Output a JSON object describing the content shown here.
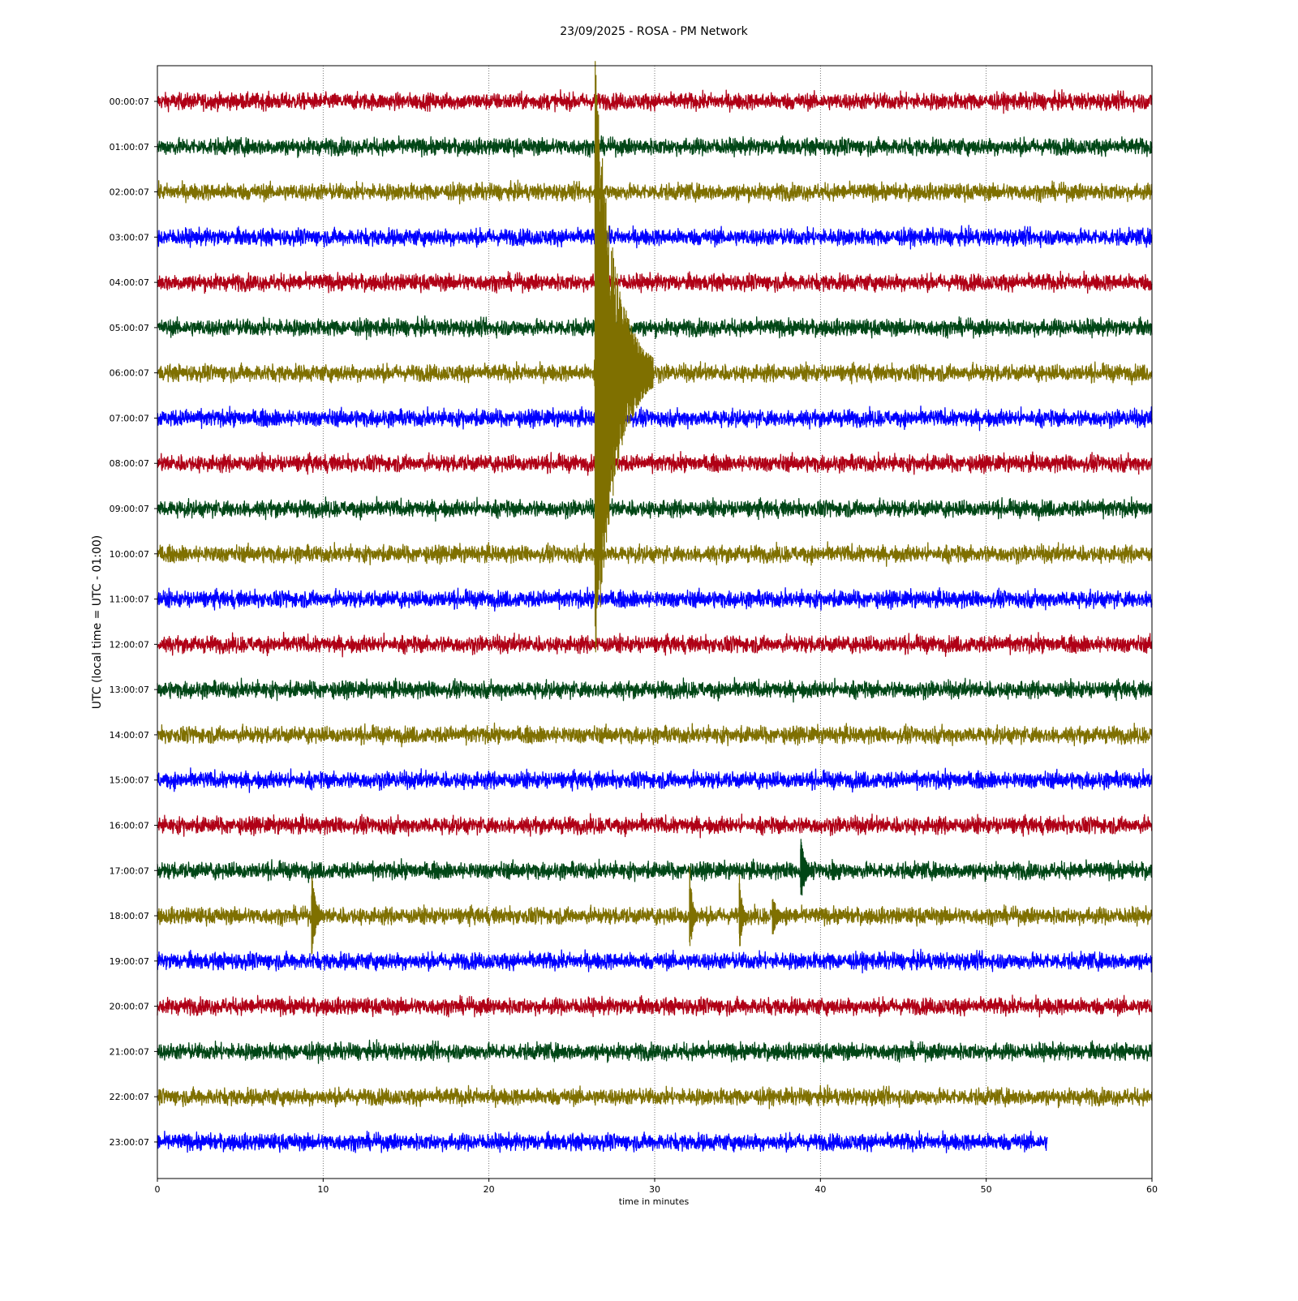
{
  "chart_data": {
    "type": "line",
    "title": "23/09/2025 - ROSA - PM Network",
    "xlabel": "time in minutes",
    "ylabel": "UTC (local time = UTC - 01:00)",
    "xlim": [
      0,
      60
    ],
    "x_ticks": [
      0,
      10,
      20,
      30,
      40,
      50,
      60
    ],
    "grid": "vertical dotted gridlines at x ticks",
    "legend": "none",
    "trace_colors": [
      "#b00016",
      "#004616",
      "#7f7000",
      "#0000ff"
    ],
    "series": [
      {
        "hour_label": "00:00:07",
        "color": "#b00016",
        "end_minute": 60
      },
      {
        "hour_label": "01:00:07",
        "color": "#004616",
        "end_minute": 60
      },
      {
        "hour_label": "02:00:07",
        "color": "#7f7000",
        "end_minute": 60
      },
      {
        "hour_label": "03:00:07",
        "color": "#0000ff",
        "end_minute": 60
      },
      {
        "hour_label": "04:00:07",
        "color": "#b00016",
        "end_minute": 60
      },
      {
        "hour_label": "05:00:07",
        "color": "#004616",
        "end_minute": 60
      },
      {
        "hour_label": "06:00:07",
        "color": "#7f7000",
        "end_minute": 60,
        "events": [
          {
            "minute": 26.4,
            "amplitude": 7.0,
            "duration": 3.5
          }
        ]
      },
      {
        "hour_label": "07:00:07",
        "color": "#0000ff",
        "end_minute": 60
      },
      {
        "hour_label": "08:00:07",
        "color": "#b00016",
        "end_minute": 60
      },
      {
        "hour_label": "09:00:07",
        "color": "#004616",
        "end_minute": 60
      },
      {
        "hour_label": "10:00:07",
        "color": "#7f7000",
        "end_minute": 60
      },
      {
        "hour_label": "11:00:07",
        "color": "#0000ff",
        "end_minute": 60
      },
      {
        "hour_label": "12:00:07",
        "color": "#b00016",
        "end_minute": 60
      },
      {
        "hour_label": "13:00:07",
        "color": "#004616",
        "end_minute": 60
      },
      {
        "hour_label": "14:00:07",
        "color": "#7f7000",
        "end_minute": 60
      },
      {
        "hour_label": "15:00:07",
        "color": "#0000ff",
        "end_minute": 60
      },
      {
        "hour_label": "16:00:07",
        "color": "#b00016",
        "end_minute": 60
      },
      {
        "hour_label": "17:00:07",
        "color": "#004616",
        "end_minute": 60,
        "events": [
          {
            "minute": 38.8,
            "amplitude": 0.8,
            "duration": 0.8
          },
          {
            "minute": 40.7,
            "amplitude": 0.35,
            "duration": 0.5
          }
        ]
      },
      {
        "hour_label": "18:00:07",
        "color": "#7f7000",
        "end_minute": 60,
        "events": [
          {
            "minute": 9.3,
            "amplitude": 1.0,
            "duration": 0.8
          },
          {
            "minute": 32.1,
            "amplitude": 1.2,
            "duration": 0.5
          },
          {
            "minute": 35.1,
            "amplitude": 1.0,
            "duration": 0.5
          },
          {
            "minute": 37.1,
            "amplitude": 0.5,
            "duration": 0.9
          }
        ]
      },
      {
        "hour_label": "19:00:07",
        "color": "#0000ff",
        "end_minute": 60
      },
      {
        "hour_label": "20:00:07",
        "color": "#b00016",
        "end_minute": 60
      },
      {
        "hour_label": "21:00:07",
        "color": "#004616",
        "end_minute": 60
      },
      {
        "hour_label": "22:00:07",
        "color": "#7f7000",
        "end_minute": 60
      },
      {
        "hour_label": "23:00:07",
        "color": "#0000ff",
        "end_minute": 53.7
      }
    ]
  }
}
